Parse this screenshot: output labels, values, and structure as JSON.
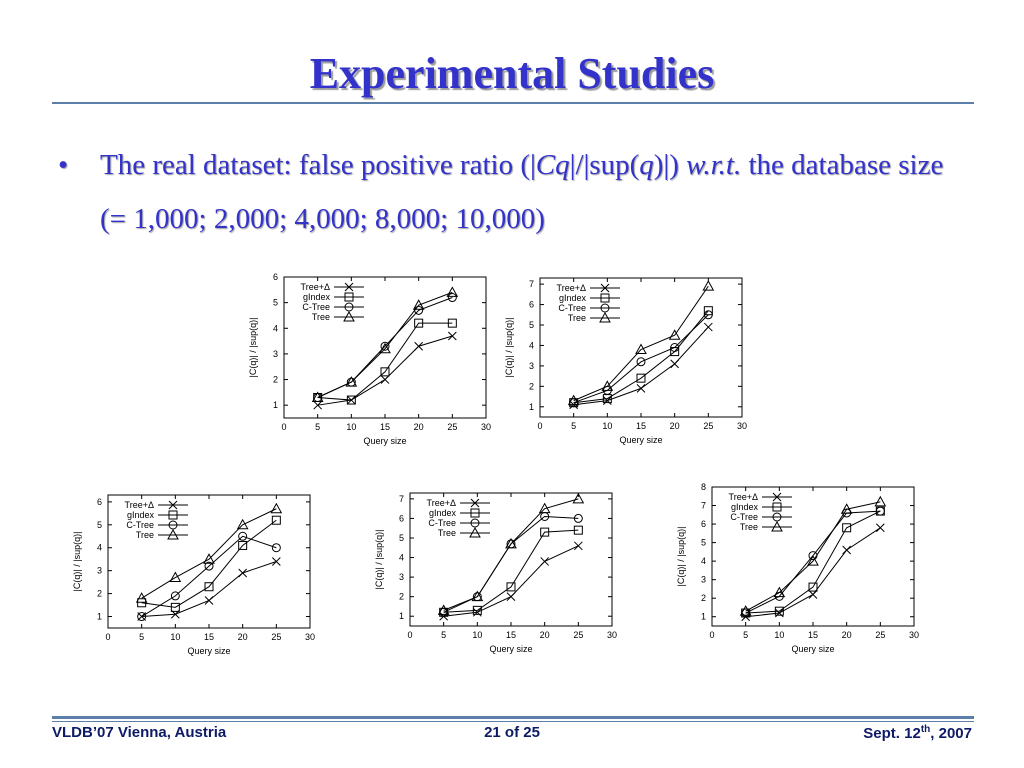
{
  "slide": {
    "title": "Experimental Studies",
    "bullet_symbol": "•",
    "bullet_parts": {
      "p1": "The real dataset: false positive ratio (|",
      "p2": "Cq",
      "p3": "|/|sup(",
      "p4": "q",
      "p5": ")|) ",
      "p6": "w.r.t.",
      "p7": " the database size (= 1,000; 2,000; 4,000; 8,000; 10,000)"
    }
  },
  "footer": {
    "left": "VLDB’07 Vienna, Austria",
    "center": "21 of 25",
    "right_prefix": "Sept. 12",
    "right_sup": "th",
    "right_suffix": ", 2007"
  },
  "chart_data": [
    {
      "type": "line",
      "xlabel": "Query size",
      "ylabel": "|C(q)| / |sup(q)|",
      "xlim": [
        0,
        30
      ],
      "ylim": [
        0.5,
        6
      ],
      "xticks": [
        0,
        5,
        10,
        15,
        20,
        25,
        30
      ],
      "yticks": [
        1,
        2,
        3,
        4,
        5,
        6
      ],
      "x": [
        5,
        10,
        15,
        20,
        25
      ],
      "legend": "top-left",
      "series": [
        {
          "name": "Tree+Δ",
          "marker": "x",
          "values": [
            1.0,
            1.2,
            2.0,
            3.3,
            3.7
          ]
        },
        {
          "name": "gIndex",
          "marker": "square",
          "values": [
            1.3,
            1.2,
            2.3,
            4.2,
            4.2
          ]
        },
        {
          "name": "C-Tree",
          "marker": "circle",
          "values": [
            1.3,
            1.9,
            3.3,
            4.7,
            5.2
          ]
        },
        {
          "name": "Tree",
          "marker": "triangle",
          "values": [
            1.3,
            1.9,
            3.2,
            4.9,
            5.4
          ]
        }
      ]
    },
    {
      "type": "line",
      "xlabel": "Query size",
      "ylabel": "|C(q)| / |sup(q)|",
      "xlim": [
        0,
        30
      ],
      "ylim": [
        0.5,
        7.3
      ],
      "xticks": [
        0,
        5,
        10,
        15,
        20,
        25,
        30
      ],
      "yticks": [
        1,
        2,
        3,
        4,
        5,
        6,
        7
      ],
      "x": [
        5,
        10,
        15,
        20,
        25
      ],
      "legend": "top-left",
      "series": [
        {
          "name": "Tree+Δ",
          "marker": "x",
          "values": [
            1.1,
            1.3,
            1.9,
            3.1,
            4.9
          ]
        },
        {
          "name": "gIndex",
          "marker": "square",
          "values": [
            1.2,
            1.4,
            2.4,
            3.7,
            5.7
          ]
        },
        {
          "name": "C-Tree",
          "marker": "circle",
          "values": [
            1.2,
            1.8,
            3.2,
            3.9,
            5.5
          ]
        },
        {
          "name": "Tree",
          "marker": "triangle",
          "values": [
            1.3,
            2.0,
            3.8,
            4.5,
            6.9
          ]
        }
      ]
    },
    {
      "type": "line",
      "xlabel": "Query size",
      "ylabel": "|C(q)| / |sup(q)|",
      "xlim": [
        0,
        30
      ],
      "ylim": [
        0.5,
        6.3
      ],
      "xticks": [
        0,
        5,
        10,
        15,
        20,
        25,
        30
      ],
      "yticks": [
        1,
        2,
        3,
        4,
        5,
        6
      ],
      "x": [
        5,
        10,
        15,
        20,
        25
      ],
      "legend": "top-left",
      "series": [
        {
          "name": "Tree+Δ",
          "marker": "x",
          "values": [
            1.0,
            1.1,
            1.7,
            2.9,
            3.4
          ]
        },
        {
          "name": "gIndex",
          "marker": "square",
          "values": [
            1.6,
            1.4,
            2.3,
            4.1,
            5.2
          ]
        },
        {
          "name": "C-Tree",
          "marker": "circle",
          "values": [
            1.0,
            1.9,
            3.2,
            4.5,
            4.0
          ]
        },
        {
          "name": "Tree",
          "marker": "triangle",
          "values": [
            1.8,
            2.7,
            3.5,
            5.0,
            5.7
          ]
        }
      ]
    },
    {
      "type": "line",
      "xlabel": "Query size",
      "ylabel": "|C(q)| / |sup(q)|",
      "xlim": [
        0,
        30
      ],
      "ylim": [
        0.5,
        7.3
      ],
      "xticks": [
        0,
        5,
        10,
        15,
        20,
        25,
        30
      ],
      "yticks": [
        1,
        2,
        3,
        4,
        5,
        6,
        7
      ],
      "x": [
        5,
        10,
        15,
        20,
        25
      ],
      "legend": "top-left",
      "series": [
        {
          "name": "Tree+Δ",
          "marker": "x",
          "values": [
            1.0,
            1.2,
            2.0,
            3.8,
            4.6
          ]
        },
        {
          "name": "gIndex",
          "marker": "square",
          "values": [
            1.2,
            1.3,
            2.5,
            5.3,
            5.4
          ]
        },
        {
          "name": "C-Tree",
          "marker": "circle",
          "values": [
            1.2,
            2.0,
            4.7,
            6.1,
            6.0
          ]
        },
        {
          "name": "Tree",
          "marker": "triangle",
          "values": [
            1.3,
            2.0,
            4.7,
            6.5,
            7.0
          ]
        }
      ]
    },
    {
      "type": "line",
      "xlabel": "Query size",
      "ylabel": "|C(q)| / |sup(q)|",
      "xlim": [
        0,
        30
      ],
      "ylim": [
        0.5,
        8
      ],
      "xticks": [
        0,
        5,
        10,
        15,
        20,
        25,
        30
      ],
      "yticks": [
        1,
        2,
        3,
        4,
        5,
        6,
        7,
        8
      ],
      "x": [
        5,
        10,
        15,
        20,
        25
      ],
      "legend": "top-left",
      "series": [
        {
          "name": "Tree+Δ",
          "marker": "x",
          "values": [
            1.0,
            1.2,
            2.2,
            4.6,
            5.8
          ]
        },
        {
          "name": "gIndex",
          "marker": "square",
          "values": [
            1.2,
            1.3,
            2.6,
            5.8,
            6.7
          ]
        },
        {
          "name": "C-Tree",
          "marker": "circle",
          "values": [
            1.2,
            2.1,
            4.3,
            6.6,
            6.7
          ]
        },
        {
          "name": "Tree",
          "marker": "triangle",
          "values": [
            1.3,
            2.3,
            4.0,
            6.8,
            7.2
          ]
        }
      ]
    }
  ]
}
